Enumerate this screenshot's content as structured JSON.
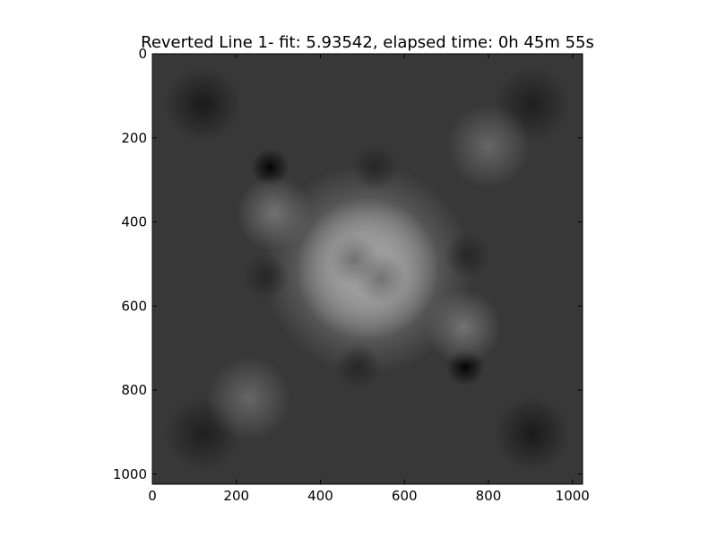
{
  "chart_data": {
    "type": "heatmap",
    "title": "Reverted Line 1- fit: 5.93542, elapsed time: 0h 45m 55s",
    "colormap": "gray",
    "xlabel": "",
    "ylabel": "",
    "xlim": [
      0,
      1024
    ],
    "ylim": [
      1024,
      0
    ],
    "x_ticks": [
      0,
      200,
      400,
      600,
      800,
      1000
    ],
    "y_ticks": [
      0,
      200,
      400,
      600,
      800,
      1000
    ],
    "x_tick_labels": [
      "0",
      "200",
      "400",
      "600",
      "800",
      "1000"
    ],
    "y_tick_labels": [
      "0",
      "200",
      "400",
      "600",
      "800",
      "1000"
    ],
    "background_level": 0.22,
    "features": [
      {
        "kind": "bright",
        "x": 512,
        "y": 512,
        "r": 170,
        "level": 0.97
      },
      {
        "kind": "bright",
        "x": 512,
        "y": 512,
        "r": 250,
        "level": 0.58
      },
      {
        "kind": "dark",
        "x": 280,
        "y": 270,
        "r": 45,
        "level": 0.02
      },
      {
        "kind": "dark",
        "x": 745,
        "y": 745,
        "r": 45,
        "level": 0.02
      },
      {
        "kind": "dark",
        "x": 530,
        "y": 270,
        "r": 55,
        "level": 0.15
      },
      {
        "kind": "dark",
        "x": 490,
        "y": 745,
        "r": 55,
        "level": 0.15
      },
      {
        "kind": "dark",
        "x": 270,
        "y": 530,
        "r": 55,
        "level": 0.15
      },
      {
        "kind": "dark",
        "x": 750,
        "y": 480,
        "r": 55,
        "level": 0.15
      },
      {
        "kind": "dark",
        "x": 480,
        "y": 490,
        "r": 60,
        "level": 0.45
      },
      {
        "kind": "dark",
        "x": 545,
        "y": 535,
        "r": 60,
        "level": 0.45
      },
      {
        "kind": "dark",
        "x": 120,
        "y": 120,
        "r": 90,
        "level": 0.1
      },
      {
        "kind": "dark",
        "x": 904,
        "y": 904,
        "r": 90,
        "level": 0.1
      },
      {
        "kind": "dark",
        "x": 904,
        "y": 120,
        "r": 90,
        "level": 0.12
      },
      {
        "kind": "dark",
        "x": 120,
        "y": 904,
        "r": 90,
        "level": 0.12
      },
      {
        "kind": "bright",
        "x": 290,
        "y": 380,
        "r": 90,
        "level": 0.45
      },
      {
        "kind": "bright",
        "x": 740,
        "y": 650,
        "r": 90,
        "level": 0.45
      },
      {
        "kind": "bright",
        "x": 230,
        "y": 820,
        "r": 100,
        "level": 0.4
      },
      {
        "kind": "bright",
        "x": 800,
        "y": 220,
        "r": 100,
        "level": 0.4
      }
    ]
  }
}
